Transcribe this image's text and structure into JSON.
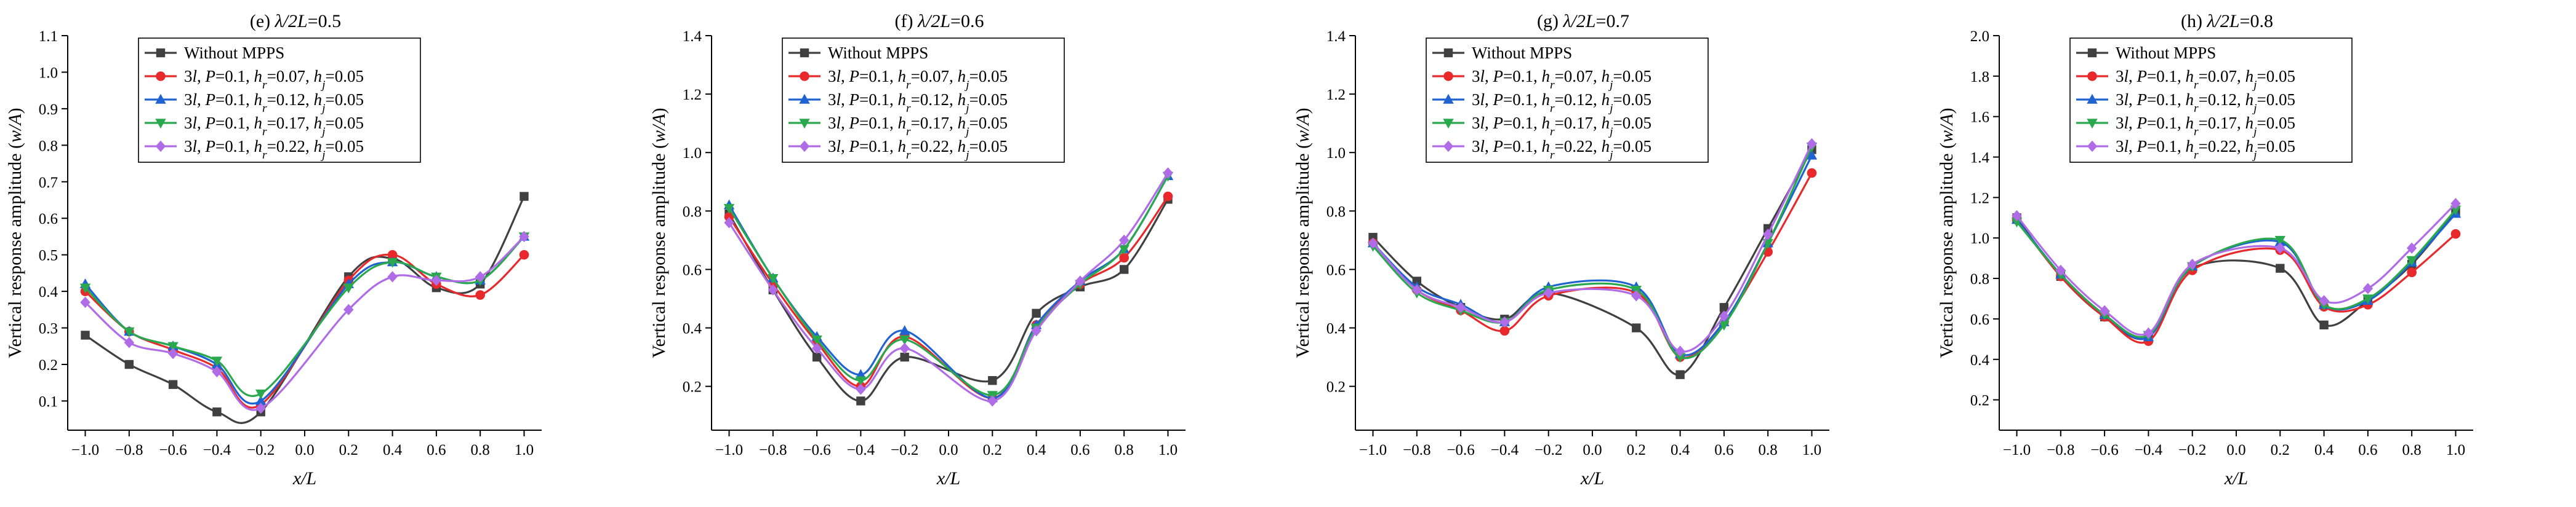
{
  "figure": {
    "legend_entries": [
      {
        "label": "Without MPPS",
        "color": "#404040",
        "marker": "square"
      },
      {
        "label": "3l, P=0.1, hr=0.07, hj=0.05",
        "color": "#e8292b",
        "marker": "circle"
      },
      {
        "label": "3l, P=0.1, hr=0.12, hj=0.05",
        "color": "#1f63d3",
        "marker": "triangle-up"
      },
      {
        "label": "3l, P=0.1, hr=0.17, hj=0.05",
        "color": "#2aa84e",
        "marker": "triangle-down"
      },
      {
        "label": "3l, P=0.1, hr=0.22, hj=0.05",
        "color": "#b06ce6",
        "marker": "diamond"
      }
    ],
    "legend_rich": [
      [
        "3",
        "l",
        ", ",
        "P",
        "=0.1, ",
        "h",
        "r",
        "=0.07, ",
        "h",
        "j",
        "=0.05"
      ],
      [
        "3",
        "l",
        ", ",
        "P",
        "=0.1, ",
        "h",
        "r",
        "=0.12, ",
        "h",
        "j",
        "=0.05"
      ],
      [
        "3",
        "l",
        ", ",
        "P",
        "=0.1, ",
        "h",
        "r",
        "=0.17, ",
        "h",
        "j",
        "=0.05"
      ],
      [
        "3",
        "l",
        ", ",
        "P",
        "=0.1, ",
        "h",
        "r",
        "=0.22, ",
        "h",
        "j",
        "=0.05"
      ]
    ]
  },
  "chart_data": [
    {
      "type": "line",
      "title": "(e) λ/2L=0.5",
      "title_parts": [
        "(e) ",
        "λ/2L",
        "=0.5"
      ],
      "xlabel": "x/L",
      "ylabel": "Vertical response amplitude (w/A)",
      "ylabel_parts": [
        "Vertical response amplitude (",
        "w/A",
        ")"
      ],
      "xlim": [
        -1.08,
        1.08
      ],
      "ylim": [
        0.02,
        1.1
      ],
      "xticks": [
        -1.0,
        -0.8,
        -0.6,
        -0.4,
        -0.2,
        0.0,
        0.2,
        0.4,
        0.6,
        0.8,
        1.0
      ],
      "xtick_labels": [
        "−1.0",
        "−0.8",
        "−0.6",
        "−0.4",
        "−0.2",
        "0.0",
        "0.2",
        "0.4",
        "0.6",
        "0.8",
        "1.0"
      ],
      "yticks": [
        0.1,
        0.2,
        0.3,
        0.4,
        0.5,
        0.6,
        0.7,
        0.8,
        0.9,
        1.0,
        1.1
      ],
      "ytick_labels": [
        "0.1",
        "0.2",
        "0.3",
        "0.4",
        "0.5",
        "0.6",
        "0.7",
        "0.8",
        "0.9",
        "1.0",
        "1.1"
      ],
      "x": [
        -1.0,
        -0.8,
        -0.6,
        -0.4,
        -0.2,
        0.2,
        0.4,
        0.6,
        0.8,
        1.0
      ],
      "series": [
        {
          "name": "Without MPPS",
          "values": [
            0.28,
            0.2,
            0.145,
            0.07,
            0.07,
            0.44,
            0.49,
            0.41,
            0.42,
            0.66
          ]
        },
        {
          "name": "3l, P=0.1, hr=0.07, hj=0.05",
          "values": [
            0.4,
            0.29,
            0.24,
            0.19,
            0.09,
            0.43,
            0.5,
            0.42,
            0.39,
            0.5
          ]
        },
        {
          "name": "3l, P=0.1, hr=0.12, hj=0.05",
          "values": [
            0.42,
            0.29,
            0.25,
            0.2,
            0.1,
            0.42,
            0.48,
            0.44,
            0.43,
            0.55
          ]
        },
        {
          "name": "3l, P=0.1, hr=0.17, hj=0.05",
          "values": [
            0.41,
            0.29,
            0.25,
            0.21,
            0.12,
            0.41,
            0.48,
            0.44,
            0.43,
            0.55
          ]
        },
        {
          "name": "3l, P=0.1, hr=0.22, hj=0.05",
          "values": [
            0.37,
            0.26,
            0.23,
            0.18,
            0.08,
            0.35,
            0.44,
            0.43,
            0.44,
            0.55
          ]
        }
      ]
    },
    {
      "type": "line",
      "title": "(f) λ/2L=0.6",
      "title_parts": [
        "(f) ",
        "λ/2L",
        "=0.6"
      ],
      "xlabel": "x/L",
      "ylabel": "Vertical response amplitude (w/A)",
      "ylabel_parts": [
        "Vertical response amplitude (",
        "w/A",
        ")"
      ],
      "xlim": [
        -1.08,
        1.08
      ],
      "ylim": [
        0.05,
        1.4
      ],
      "xticks": [
        -1.0,
        -0.8,
        -0.6,
        -0.4,
        -0.2,
        0.0,
        0.2,
        0.4,
        0.6,
        0.8,
        1.0
      ],
      "xtick_labels": [
        "−1.0",
        "−0.8",
        "−0.6",
        "−0.4",
        "−0.2",
        "0.0",
        "0.2",
        "0.4",
        "0.6",
        "0.8",
        "1.0"
      ],
      "yticks": [
        0.2,
        0.4,
        0.6,
        0.8,
        1.0,
        1.2,
        1.4
      ],
      "ytick_labels": [
        "0.2",
        "0.4",
        "0.6",
        "0.8",
        "1.0",
        "1.2",
        "1.4"
      ],
      "x": [
        -1.0,
        -0.8,
        -0.6,
        -0.4,
        -0.2,
        0.2,
        0.4,
        0.6,
        0.8,
        1.0
      ],
      "series": [
        {
          "name": "Without MPPS",
          "values": [
            0.79,
            0.53,
            0.3,
            0.15,
            0.3,
            0.22,
            0.45,
            0.54,
            0.6,
            0.84
          ]
        },
        {
          "name": "3l, P=0.1, hr=0.07, hj=0.05",
          "values": [
            0.78,
            0.55,
            0.35,
            0.2,
            0.37,
            0.16,
            0.41,
            0.55,
            0.64,
            0.85
          ]
        },
        {
          "name": "3l, P=0.1, hr=0.12, hj=0.05",
          "values": [
            0.82,
            0.57,
            0.37,
            0.24,
            0.39,
            0.16,
            0.41,
            0.56,
            0.67,
            0.92
          ]
        },
        {
          "name": "3l, P=0.1, hr=0.17, hj=0.05",
          "values": [
            0.81,
            0.57,
            0.36,
            0.22,
            0.36,
            0.17,
            0.4,
            0.55,
            0.67,
            0.92
          ]
        },
        {
          "name": "3l, P=0.1, hr=0.22, hj=0.05",
          "values": [
            0.76,
            0.53,
            0.33,
            0.19,
            0.33,
            0.15,
            0.39,
            0.56,
            0.7,
            0.93
          ]
        }
      ]
    },
    {
      "type": "line",
      "title": "(g) λ/2L=0.7",
      "title_parts": [
        "(g) ",
        "λ/2L",
        "=0.7"
      ],
      "xlabel": "x/L",
      "ylabel": "Vertical response amplitude (w/A)",
      "ylabel_parts": [
        "Vertical response amplitude (",
        "w/A",
        ")"
      ],
      "xlim": [
        -1.08,
        1.08
      ],
      "ylim": [
        0.05,
        1.4
      ],
      "xticks": [
        -1.0,
        -0.8,
        -0.6,
        -0.4,
        -0.2,
        0.0,
        0.2,
        0.4,
        0.6,
        0.8,
        1.0
      ],
      "xtick_labels": [
        "−1.0",
        "−0.8",
        "−0.6",
        "−0.4",
        "−0.2",
        "0.0",
        "0.2",
        "0.4",
        "0.6",
        "0.8",
        "1.0"
      ],
      "yticks": [
        0.2,
        0.4,
        0.6,
        0.8,
        1.0,
        1.2,
        1.4
      ],
      "ytick_labels": [
        "0.2",
        "0.4",
        "0.6",
        "0.8",
        "1.0",
        "1.2",
        "1.4"
      ],
      "x": [
        -1.0,
        -0.8,
        -0.6,
        -0.4,
        -0.2,
        0.2,
        0.4,
        0.6,
        0.8,
        1.0
      ],
      "series": [
        {
          "name": "Without MPPS",
          "values": [
            0.71,
            0.56,
            0.47,
            0.43,
            0.52,
            0.4,
            0.24,
            0.47,
            0.74,
            1.01
          ]
        },
        {
          "name": "3l, P=0.1, hr=0.07, hj=0.05",
          "values": [
            0.69,
            0.53,
            0.46,
            0.39,
            0.51,
            0.52,
            0.3,
            0.42,
            0.66,
            0.93
          ]
        },
        {
          "name": "3l, P=0.1, hr=0.12, hj=0.05",
          "values": [
            0.69,
            0.54,
            0.48,
            0.42,
            0.54,
            0.54,
            0.31,
            0.42,
            0.69,
            0.99
          ]
        },
        {
          "name": "3l, P=0.1, hr=0.17, hj=0.05",
          "values": [
            0.68,
            0.52,
            0.46,
            0.42,
            0.53,
            0.53,
            0.3,
            0.41,
            0.69,
            1.02
          ]
        },
        {
          "name": "3l, P=0.1, hr=0.22, hj=0.05",
          "values": [
            0.69,
            0.53,
            0.47,
            0.42,
            0.52,
            0.51,
            0.32,
            0.44,
            0.72,
            1.03
          ]
        }
      ]
    },
    {
      "type": "line",
      "title": "(h) λ/2L=0.8",
      "title_parts": [
        "(h) ",
        "λ/2L",
        "=0.8"
      ],
      "xlabel": "x/L",
      "ylabel": "Vertical response amplitude (w/A)",
      "ylabel_parts": [
        "Vertical response amplitude (",
        "w/A",
        ")"
      ],
      "xlim": [
        -1.08,
        1.08
      ],
      "ylim": [
        0.05,
        2.0
      ],
      "xticks": [
        -1.0,
        -0.8,
        -0.6,
        -0.4,
        -0.2,
        0.0,
        0.2,
        0.4,
        0.6,
        0.8,
        1.0
      ],
      "xtick_labels": [
        "−1.0",
        "−0.8",
        "−0.6",
        "−0.4",
        "−0.2",
        "0.0",
        "0.2",
        "0.4",
        "0.6",
        "0.8",
        "1.0"
      ],
      "yticks": [
        0.2,
        0.4,
        0.6,
        0.8,
        1.0,
        1.2,
        1.4,
        1.6,
        1.8,
        2.0
      ],
      "ytick_labels": [
        "0.2",
        "0.4",
        "0.6",
        "0.8",
        "1.0",
        "1.2",
        "1.4",
        "1.6",
        "1.8",
        "2.0"
      ],
      "x": [
        -1.0,
        -0.8,
        -0.6,
        -0.4,
        -0.2,
        0.2,
        0.4,
        0.6,
        0.8,
        1.0
      ],
      "series": [
        {
          "name": "Without MPPS",
          "values": [
            1.1,
            0.81,
            0.61,
            0.51,
            0.85,
            0.85,
            0.57,
            0.69,
            0.87,
            1.13
          ]
        },
        {
          "name": "3l, P=0.1, hr=0.07, hj=0.05",
          "values": [
            1.09,
            0.81,
            0.61,
            0.49,
            0.84,
            0.94,
            0.66,
            0.67,
            0.83,
            1.02
          ]
        },
        {
          "name": "3l, P=0.1, hr=0.12, hj=0.05",
          "values": [
            1.09,
            0.82,
            0.62,
            0.51,
            0.86,
            0.98,
            0.67,
            0.69,
            0.88,
            1.12
          ]
        },
        {
          "name": "3l, P=0.1, hr=0.17, hj=0.05",
          "values": [
            1.08,
            0.82,
            0.62,
            0.52,
            0.86,
            0.99,
            0.67,
            0.7,
            0.89,
            1.14
          ]
        },
        {
          "name": "3l, P=0.1, hr=0.22, hj=0.05",
          "values": [
            1.11,
            0.84,
            0.64,
            0.53,
            0.87,
            0.95,
            0.69,
            0.75,
            0.95,
            1.17
          ]
        }
      ]
    }
  ]
}
